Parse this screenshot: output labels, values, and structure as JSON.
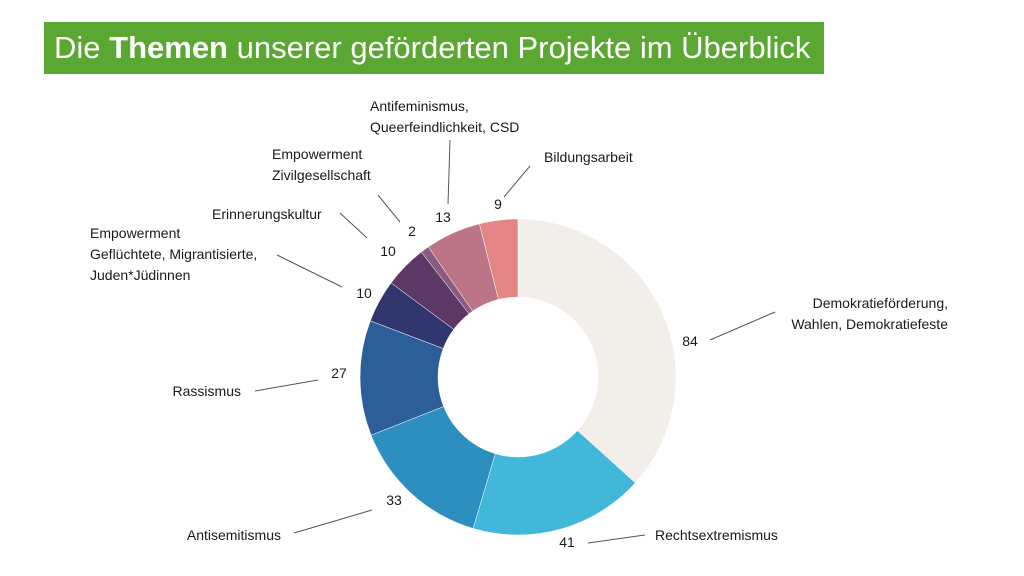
{
  "title": {
    "prefix": "Die ",
    "bold": "Themen",
    "suffix": " unserer geförderten Projekte im Überblick"
  },
  "colors": {
    "title_background": "#5aa832",
    "title_text": "#ffffff"
  },
  "chart_data": {
    "type": "pie",
    "style": "donut",
    "start": "top (12 o'clock), clockwise",
    "slices": [
      {
        "label": [
          "Demokratieförderung,",
          "Wahlen, Demokratiefeste"
        ],
        "value": 84,
        "color": "#f2eee9"
      },
      {
        "label": [
          "Rechtsextremismus"
        ],
        "value": 41,
        "color": "#41b7d9"
      },
      {
        "label": [
          "Antisemitismus"
        ],
        "value": 33,
        "color": "#2d8fc0"
      },
      {
        "label": [
          "Rassismus"
        ],
        "value": 27,
        "color": "#2c5f9a"
      },
      {
        "label": [
          "Empowerment",
          "Geflüchtete, Migrantisierte,",
          "Juden*Jüdinnen"
        ],
        "value": 10,
        "color": "#31366e"
      },
      {
        "label": [
          "Erinnerungskultur"
        ],
        "value": 10,
        "color": "#5c3866"
      },
      {
        "label": [
          "Empowerment",
          "Zivilgesellschaft"
        ],
        "value": 2,
        "color": "#8a5a80"
      },
      {
        "label": [
          "Antifeminismus,",
          "Queerfeindlichkeit, CSD"
        ],
        "value": 13,
        "color": "#bb7587"
      },
      {
        "label": [
          "Bildungsarbeit"
        ],
        "value": 9,
        "color": "#e38585"
      }
    ]
  }
}
